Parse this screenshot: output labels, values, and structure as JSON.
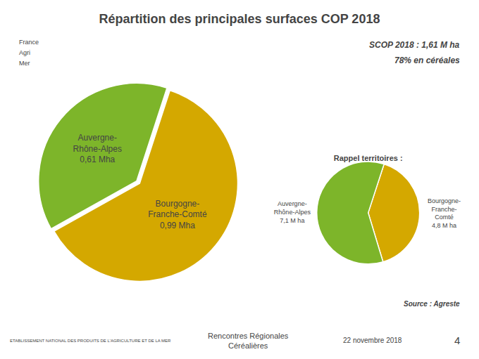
{
  "chart_data": [
    {
      "type": "pie",
      "title": "Répartition des principales surfaces COP 2018",
      "categories": [
        "Bourgogne-\nFranche-Comté",
        "Auvergne-\nRhône-Alpes"
      ],
      "values": [
        0.99,
        0.61
      ],
      "value_labels": [
        "0,99 Mha",
        "0,61 Mha"
      ],
      "data_labels": true,
      "colors": [
        "#D4A800",
        "#7DB52A"
      ],
      "annotations": [
        "SCOP 2018 : 1,61 M ha",
        "78% en céréales",
        "Source : Agreste",
        "France",
        "Agri",
        "Mer",
        "ETABLISSEMENT NATIONAL DES PRODUITS DE L'AGRICULTURE ET DE LA MER",
        "Rencontres Régionales\nCéréalières",
        "22 novembre 2018",
        "4"
      ]
    },
    {
      "type": "pie",
      "title": "Rappel territoires :",
      "categories": [
        "Bourgogne-\nFranche-\nComté",
        "Auvergne-\nRhône-Alpes"
      ],
      "values": [
        4.8,
        7.1
      ],
      "value_labels": [
        "4,8 M ha",
        "7,1 M ha"
      ],
      "data_labels": true,
      "colors": [
        "#D4A800",
        "#7DB52A"
      ]
    }
  ]
}
